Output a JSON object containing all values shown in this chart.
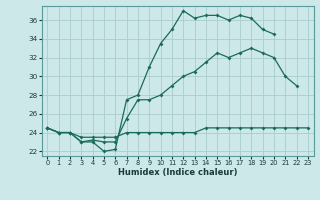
{
  "xlabel": "Humidex (Indice chaleur)",
  "background_color": "#cce8e8",
  "grid_color": "#aacccc",
  "line_color": "#1a6b5a",
  "xlim": [
    -0.5,
    23.5
  ],
  "ylim": [
    21.5,
    37.5
  ],
  "xticks": [
    0,
    1,
    2,
    3,
    4,
    5,
    6,
    7,
    8,
    9,
    10,
    11,
    12,
    13,
    14,
    15,
    16,
    17,
    18,
    19,
    20,
    21,
    22,
    23
  ],
  "yticks": [
    22,
    24,
    26,
    28,
    30,
    32,
    34,
    36
  ],
  "line1_y": [
    24.5,
    24.0,
    24.0,
    23.0,
    23.0,
    22.0,
    22.2,
    27.5,
    28.0,
    31.0,
    33.5,
    35.0,
    37.0,
    36.2,
    36.5,
    36.5,
    36.0,
    36.5,
    36.2,
    35.0,
    34.5,
    null,
    null,
    null
  ],
  "line2_y": [
    24.5,
    24.0,
    24.0,
    23.0,
    23.2,
    23.0,
    23.0,
    25.5,
    27.5,
    27.5,
    28.0,
    29.0,
    30.0,
    30.5,
    31.5,
    32.5,
    32.0,
    32.5,
    33.0,
    32.5,
    32.0,
    30.0,
    29.0,
    null
  ],
  "line3_y": [
    24.5,
    24.0,
    24.0,
    23.5,
    23.5,
    23.5,
    23.5,
    24.0,
    24.0,
    24.0,
    24.0,
    24.0,
    24.0,
    24.0,
    24.5,
    24.5,
    24.5,
    24.5,
    24.5,
    24.5,
    24.5,
    24.5,
    24.5,
    24.5
  ]
}
